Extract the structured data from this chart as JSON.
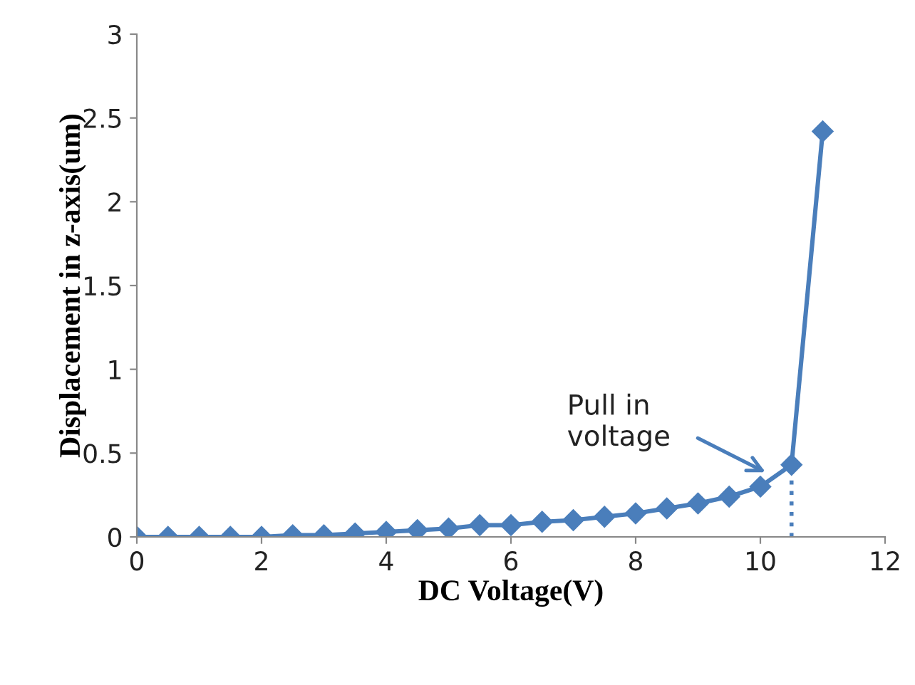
{
  "chart_data": {
    "type": "line",
    "xlabel": "DC Voltage(V)",
    "ylabel": "Displacement in z-axis(um)",
    "xlim": [
      0,
      12
    ],
    "xticks": [
      0,
      2,
      4,
      6,
      8,
      10,
      12
    ],
    "ylim": [
      0,
      3
    ],
    "yticks": [
      0,
      {
        "value": 0.5,
        "label": "0.5"
      },
      1,
      {
        "value": 1.5,
        "label": "1.5"
      },
      2,
      {
        "value": 2.5,
        "label": "2.5"
      },
      3
    ],
    "grid": false,
    "legend": false,
    "marker": "diamond",
    "line_style": "solid",
    "series": [
      {
        "color": "#4a7ebb",
        "x": [
          0,
          0.5,
          1,
          1.5,
          2,
          2.5,
          3,
          3.5,
          4,
          4.5,
          5,
          5.5,
          6,
          6.5,
          7,
          7.5,
          8,
          8.5,
          9,
          9.5,
          10,
          10.5,
          11
        ],
        "values": [
          0,
          0,
          0,
          0,
          0,
          0.01,
          0.01,
          0.02,
          0.03,
          0.04,
          0.05,
          0.07,
          0.07,
          0.09,
          0.1,
          0.12,
          0.14,
          0.17,
          0.2,
          0.24,
          0.3,
          0.43,
          2.42
        ]
      },
      {
        "color": "#4a7ebb",
        "x": [
          10.5,
          10.5
        ],
        "values": [
          0,
          0.43
        ],
        "marker": "none",
        "line_style": "dotted"
      }
    ],
    "annotations": [
      "Pull in\nvoltage"
    ]
  }
}
